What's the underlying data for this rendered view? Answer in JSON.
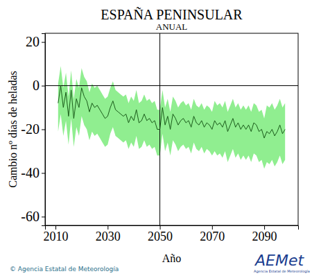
{
  "chart_data": {
    "type": "line",
    "title": "ESPAÑA PENINSULAR",
    "subtitle": "ANUAL",
    "x_label": "Año",
    "y_label": "Cambio nº días de heladas",
    "footer": "© Agencia Estatal de Meteorología",
    "logo": "AEMet",
    "logo_caption": "Agencia Estatal de Meteorología",
    "x": [
      2011,
      2012,
      2013,
      2014,
      2015,
      2016,
      2017,
      2018,
      2019,
      2020,
      2021,
      2022,
      2023,
      2024,
      2025,
      2026,
      2027,
      2028,
      2029,
      2030,
      2031,
      2032,
      2033,
      2034,
      2035,
      2036,
      2037,
      2038,
      2039,
      2040,
      2041,
      2042,
      2043,
      2044,
      2045,
      2046,
      2047,
      2048,
      2049,
      2050,
      2051,
      2052,
      2053,
      2054,
      2055,
      2056,
      2057,
      2058,
      2059,
      2060,
      2061,
      2062,
      2063,
      2064,
      2065,
      2066,
      2067,
      2068,
      2069,
      2070,
      2071,
      2072,
      2073,
      2074,
      2075,
      2076,
      2077,
      2078,
      2079,
      2080,
      2081,
      2082,
      2083,
      2084,
      2085,
      2086,
      2087,
      2088,
      2089,
      2090,
      2091,
      2092,
      2093,
      2094,
      2095,
      2096,
      2097,
      2098
    ],
    "series": [
      {
        "color": "#1a5c1a",
        "values": [
          -8,
          0,
          -10,
          -3,
          -14,
          -2,
          -15,
          -6,
          -10,
          -1,
          -5,
          -7,
          -12,
          -8,
          -10,
          -9,
          -11,
          -13,
          -15,
          -14,
          -10,
          -7,
          -11,
          -12,
          -13,
          -14,
          -13,
          -17,
          -14,
          -16,
          -11,
          -17,
          -16,
          -13,
          -16,
          -15,
          -17,
          -16,
          -20,
          -20,
          -10,
          -18,
          -14,
          -20,
          -13,
          -15,
          -18,
          -16,
          -15,
          -17,
          -16,
          -19,
          -14,
          -17,
          -18,
          -16,
          -19,
          -17,
          -18,
          -20,
          -16,
          -18,
          -17,
          -19,
          -16,
          -21,
          -18,
          -15,
          -19,
          -17,
          -20,
          -18,
          -20,
          -18,
          -21,
          -17,
          -18,
          -21,
          -20,
          -24,
          -21,
          -22,
          -20,
          -23,
          -21,
          -18,
          -22,
          -20
        ]
      }
    ],
    "band": {
      "color": "#90ee90",
      "upper": [
        1,
        9,
        -1,
        6,
        -5,
        7,
        -6,
        3,
        -1,
        8,
        4,
        2,
        -3,
        1,
        -1,
        0,
        -2,
        -4,
        -6,
        -5,
        -1,
        2,
        -2,
        -3,
        -4,
        -5,
        -4,
        -8,
        -5,
        -7,
        -2,
        -8,
        -7,
        -4,
        -7,
        -6,
        -8,
        -7,
        -11,
        -11,
        -2,
        -10,
        -6,
        -12,
        -5,
        -7,
        -10,
        -8,
        -7,
        -9,
        -8,
        -11,
        -6,
        -9,
        -10,
        -8,
        -11,
        -9,
        -10,
        -12,
        -7,
        -9,
        -8,
        -10,
        -7,
        -12,
        -9,
        -6,
        -10,
        -8,
        -11,
        -9,
        -11,
        -9,
        -12,
        -8,
        -9,
        -12,
        -11,
        -15,
        -9,
        -10,
        -8,
        -11,
        -9,
        -6,
        -10,
        -8
      ],
      "lower": [
        -21,
        -13,
        -23,
        -16,
        -27,
        -15,
        -28,
        -19,
        -23,
        -14,
        -18,
        -20,
        -25,
        -21,
        -23,
        -22,
        -24,
        -26,
        -28,
        -27,
        -22,
        -19,
        -23,
        -24,
        -25,
        -26,
        -25,
        -29,
        -26,
        -28,
        -23,
        -29,
        -28,
        -25,
        -28,
        -27,
        -29,
        -28,
        -32,
        -32,
        -22,
        -30,
        -26,
        -32,
        -25,
        -27,
        -30,
        -28,
        -27,
        -29,
        -28,
        -31,
        -26,
        -29,
        -30,
        -28,
        -31,
        -29,
        -30,
        -32,
        -30,
        -32,
        -31,
        -33,
        -30,
        -35,
        -32,
        -29,
        -33,
        -31,
        -34,
        -32,
        -34,
        -32,
        -35,
        -31,
        -32,
        -35,
        -34,
        -38,
        -35,
        -36,
        -34,
        -37,
        -35,
        -32,
        -36,
        -34
      ]
    },
    "reference_lines": {
      "x": 2050,
      "y": 0
    },
    "xlim": [
      2006,
      2103
    ],
    "xticks": [
      2010,
      2030,
      2050,
      2070,
      2090
    ],
    "ylim": [
      -64,
      24
    ],
    "yticks": [
      -60,
      -40,
      -20,
      0,
      20
    ],
    "grid": false
  }
}
